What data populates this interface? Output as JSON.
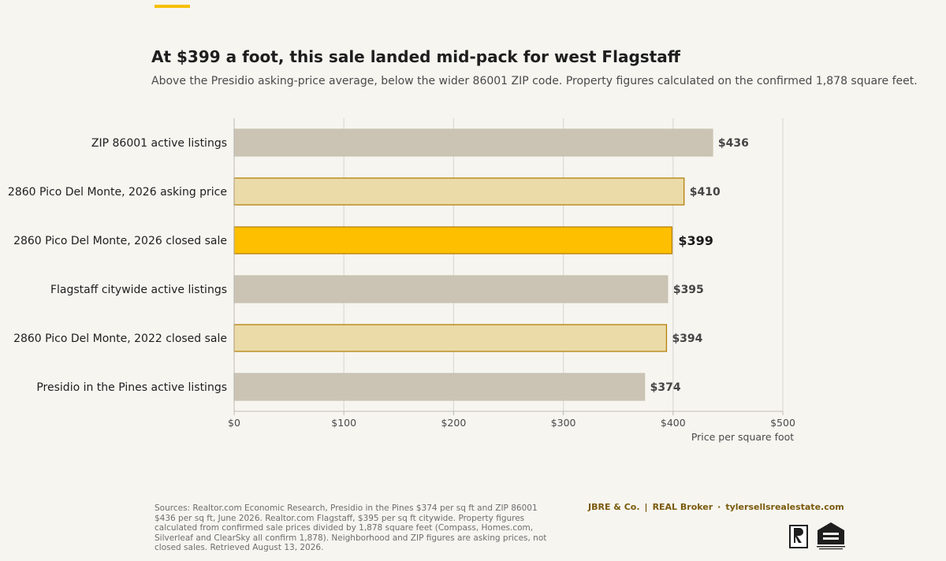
{
  "title": "At $399 a foot, this sale landed mid-pack for west Flagstaff",
  "subtitle": "Above the Presidio asking-price average, below the wider 86001 ZIP code. Property figures calculated on the confirmed 1,878 square feet.",
  "sources": "Sources: Realtor.com Economic Research, Presidio in the Pines $374 per sq ft and ZIP 86001 $436 per sq ft, June 2026. Realtor.com Flagstaff, $395 per sq ft citywide. Property figures calculated from confirmed sale prices divided by 1,878 square feet (Compass, Homes.com, Silverleaf and ClearSky all confirm 1,878). Neighborhood and ZIP figures are asking prices, not closed sales. Retrieved August 13, 2026.",
  "brand": {
    "company": "JBRE & Co.",
    "broker": "REAL Broker",
    "site": "tylersellsrealestate.com",
    "sep1": "|",
    "sep2": "·"
  },
  "logos": {
    "realtor_text": "REALTOR®",
    "eho_text": "EQUAL HOUSING OPPORTUNITY"
  },
  "colors": {
    "background": "#f6f5f0",
    "accent": "#f5c000",
    "highlight_fill": "#fdbf00",
    "property_fill": "#eadba9",
    "property_stroke": "#b5800c",
    "market_fill": "#cbc4b4",
    "grid": "#dcdad4"
  },
  "chart_data": {
    "type": "bar",
    "orientation": "horizontal",
    "categories": [
      "ZIP 86001 active listings",
      "2860 Pico Del Monte, 2026 asking price",
      "2860 Pico Del Monte, 2026 closed sale",
      "Flagstaff citywide active listings",
      "2860 Pico Del Monte, 2022 closed sale",
      "Presidio in the Pines active listings"
    ],
    "values": [
      436,
      410,
      399,
      395,
      394,
      374
    ],
    "value_labels": [
      "$436",
      "$410",
      "$399",
      "$395",
      "$394",
      "$374"
    ],
    "kinds": [
      "market",
      "property",
      "highlight",
      "market",
      "property",
      "market"
    ],
    "xlabel": "Price per square foot",
    "xlim": [
      0,
      500
    ],
    "xticks": [
      0,
      100,
      200,
      300,
      400,
      500
    ],
    "xtick_labels": [
      "$0",
      "$100",
      "$200",
      "$300",
      "$400",
      "$500"
    ],
    "grid": true
  }
}
